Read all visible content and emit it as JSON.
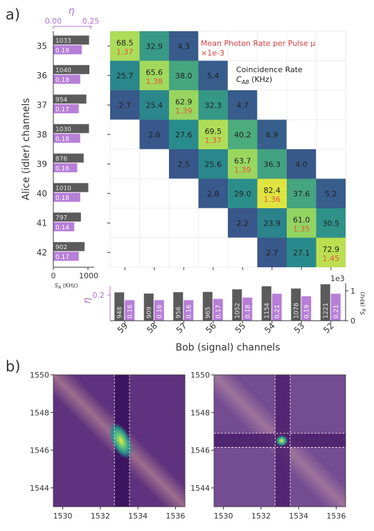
{
  "panel_labels": {
    "a": "a)",
    "b": "b)"
  },
  "colors": {
    "gray_bar": "#5b5b5b",
    "purple_bar": "#b77fd8",
    "eta_axis": "#b070d0",
    "mu_text": "#e05a3a",
    "title_red": "#d94040",
    "heatmap_low": "#3b528b",
    "heatmap_high": "#fde725",
    "panel_b_bg": "#5a2d78"
  },
  "chart_data": [
    {
      "type": "heatmap",
      "title": "Coincidence Rate",
      "title_sub": "C_AB (KHz)",
      "mu_title": "Mean Photon Rate per Pulse μ",
      "mu_scale": "×1e-3",
      "xlabel": "Bob (signal) channels",
      "ylabel": "Alice (idler) channels",
      "x_categories": [
        "59",
        "58",
        "57",
        "56",
        "55",
        "54",
        "53",
        "52"
      ],
      "y_categories": [
        "35",
        "36",
        "37",
        "38",
        "39",
        "40",
        "41",
        "42"
      ],
      "rows": [
        [
          68.5,
          32.9,
          4.3,
          null,
          null,
          null,
          null,
          null
        ],
        [
          25.7,
          65.6,
          38.0,
          5.4,
          null,
          null,
          null,
          null
        ],
        [
          2.7,
          25.4,
          62.9,
          32.3,
          4.7,
          null,
          null,
          null
        ],
        [
          null,
          2.6,
          27.6,
          69.5,
          40.2,
          6.9,
          null,
          null
        ],
        [
          null,
          null,
          2.5,
          25.6,
          63.7,
          36.3,
          4.0,
          null
        ],
        [
          null,
          null,
          null,
          2.8,
          29.0,
          82.4,
          37.6,
          5.2
        ],
        [
          null,
          null,
          null,
          null,
          2.2,
          23.9,
          61.0,
          30.5
        ],
        [
          null,
          null,
          null,
          null,
          null,
          2.7,
          27.1,
          72.9
        ]
      ],
      "mu_values": [
        "1.37",
        "1.38",
        "1.39",
        "1.37",
        "1.39",
        "1.36",
        "1.35",
        "1.45"
      ],
      "color_range": [
        0,
        85
      ]
    },
    {
      "type": "bar",
      "orientation": "horizontal",
      "categories": [
        "35",
        "36",
        "37",
        "38",
        "39",
        "40",
        "41",
        "42"
      ],
      "series": [
        {
          "name": "S_A (KHz)",
          "values": [
            1033,
            1040,
            954,
            1030,
            876,
            1010,
            797,
            902
          ]
        },
        {
          "name": "η",
          "values": [
            0.19,
            0.18,
            0.17,
            0.18,
            0.16,
            0.18,
            0.14,
            0.17
          ]
        }
      ],
      "s_labels": [
        "1033",
        "1040",
        "954",
        "1030",
        "876",
        "1010",
        "797",
        "902"
      ],
      "eta_labels": [
        "0.19",
        "0.18",
        "0.17",
        "0.18",
        "0.16",
        "0.18",
        "0.14",
        "0.17"
      ],
      "xlim_s": [
        0,
        1100
      ],
      "xlim_eta": [
        0,
        0.26
      ],
      "s_ticks": [
        "0",
        "1000"
      ],
      "eta_ticks": [
        "0.00",
        "0.25"
      ],
      "xlabel_s": "S_A (KHz)",
      "xlabel_eta": "η"
    },
    {
      "type": "bar",
      "orientation": "vertical",
      "categories": [
        "59",
        "58",
        "57",
        "56",
        "55",
        "54",
        "53",
        "52"
      ],
      "series": [
        {
          "name": "S_B (KHz)",
          "values": [
            948,
            909,
            956,
            965,
            1052,
            1154,
            1078,
            1221
          ]
        },
        {
          "name": "η",
          "values": [
            0.16,
            0.16,
            0.16,
            0.17,
            0.18,
            0.21,
            0.19,
            0.21
          ]
        }
      ],
      "s_labels": [
        "948",
        "909",
        "956",
        "965",
        "1052",
        "1154",
        "1078",
        "1221"
      ],
      "eta_labels": [
        "0.16",
        "0.16",
        "0.16",
        "0.17",
        "0.18",
        "0.21",
        "0.19",
        "0.21"
      ],
      "ylim_s": [
        0,
        1250
      ],
      "ylim_eta": [
        0,
        0.27
      ],
      "s_ticks": [
        "0",
        "1"
      ],
      "eta_ticks": [
        "0.2"
      ],
      "ylabel_s": "S_B (KHz)",
      "ylabel_eta": "η",
      "offset_text": "1e3"
    },
    {
      "type": "heatmap",
      "variant": "joint-spectrum-filter-column",
      "xlim": [
        1529.5,
        1536.5
      ],
      "ylim": [
        1543,
        1550
      ],
      "x_ticks": [
        "1530",
        "1532",
        "1534",
        "1536"
      ],
      "y_ticks": [
        "1544",
        "1546",
        "1548",
        "1550"
      ],
      "x_filter": [
        1532.75,
        1533.55
      ],
      "peak": [
        1533.1,
        1546.5
      ]
    },
    {
      "type": "heatmap",
      "variant": "joint-spectrum-filter-cross",
      "xlim": [
        1529.5,
        1536.5
      ],
      "ylim": [
        1543,
        1550
      ],
      "x_ticks": [
        "1530",
        "1532",
        "1534",
        "1536"
      ],
      "y_ticks": [
        "1544",
        "1546",
        "1548",
        "1550"
      ],
      "x_filter": [
        1532.75,
        1533.55
      ],
      "y_filter": [
        1546.15,
        1546.9
      ],
      "peak": [
        1533.1,
        1546.5
      ]
    }
  ]
}
